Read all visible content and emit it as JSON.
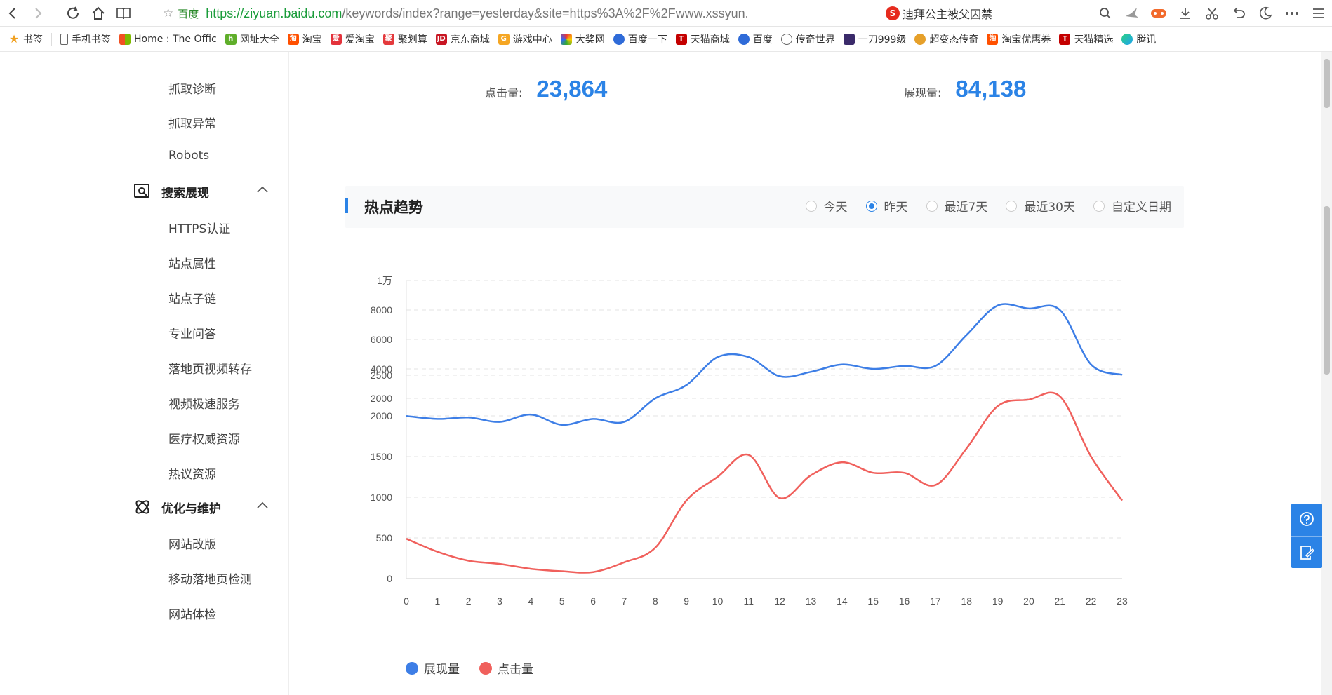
{
  "browser": {
    "address": {
      "engine": "百度",
      "url_host": "https://ziyuan.baidu.com",
      "url_rest": "/keywords/index?range=yesterday&site=https%3A%2F%2Fwww.xssyun."
    },
    "hot_search": "迪拜公主被父囚禁",
    "bookmarks": [
      "书签",
      "手机书签",
      "Home : The Offic",
      "网址大全",
      "淘宝",
      "爱淘宝",
      "聚划算",
      "京东商城",
      "游戏中心",
      "大奖网",
      "百度一下",
      "天猫商城",
      "百度",
      "传奇世界",
      "一刀999级",
      "超变态传奇",
      "淘宝优惠券",
      "天猫精选",
      "腾讯"
    ]
  },
  "sidebar": {
    "items_top": [
      "抓取诊断",
      "抓取异常",
      "Robots"
    ],
    "group_search": "搜索展现",
    "items_search": [
      "HTTPS认证",
      "站点属性",
      "站点子链",
      "专业问答",
      "落地页视频转存",
      "视频极速服务",
      "医疗权威资源",
      "热议资源"
    ],
    "group_optimize": "优化与维护",
    "items_optimize": [
      "网站改版",
      "移动落地页检测",
      "网站体检"
    ]
  },
  "stats": {
    "clicks_label": "点击量:",
    "clicks_value": "23,864",
    "impressions_label": "展现量:",
    "impressions_value": "84,138"
  },
  "section": {
    "title": "热点趋势",
    "ranges": [
      "今天",
      "昨天",
      "最近7天",
      "最近30天",
      "自定义日期"
    ],
    "selected_range": "昨天"
  },
  "chart_data": {
    "type": "line",
    "x": [
      0,
      1,
      2,
      3,
      4,
      5,
      6,
      7,
      8,
      9,
      10,
      11,
      12,
      13,
      14,
      15,
      16,
      17,
      18,
      19,
      20,
      21,
      22,
      23
    ],
    "top_axis_ticks": [
      "1万",
      "8000",
      "6000",
      "4000",
      "2000"
    ],
    "bottom_axis_ticks": [
      "2500",
      "2000",
      "1500",
      "1000",
      "500",
      "0"
    ],
    "top_ylim": [
      0,
      10000
    ],
    "bottom_ylim": [
      0,
      2500
    ],
    "series": [
      {
        "name": "展现量",
        "color": "#3d7ee6",
        "values": [
          800,
          600,
          700,
          400,
          900,
          200,
          600,
          400,
          2000,
          2900,
          4800,
          4800,
          3500,
          3800,
          4300,
          4000,
          4200,
          4200,
          6300,
          8300,
          8100,
          8000,
          4300,
          3600
        ]
      },
      {
        "name": "点击量",
        "color": "#f0605c",
        "values": [
          490,
          330,
          220,
          180,
          120,
          90,
          80,
          200,
          380,
          960,
          1250,
          1520,
          990,
          1270,
          1430,
          1300,
          1300,
          1150,
          1600,
          2120,
          2200,
          2240,
          1500,
          960
        ]
      }
    ],
    "grid": true,
    "legend_position": "bottom-left"
  }
}
